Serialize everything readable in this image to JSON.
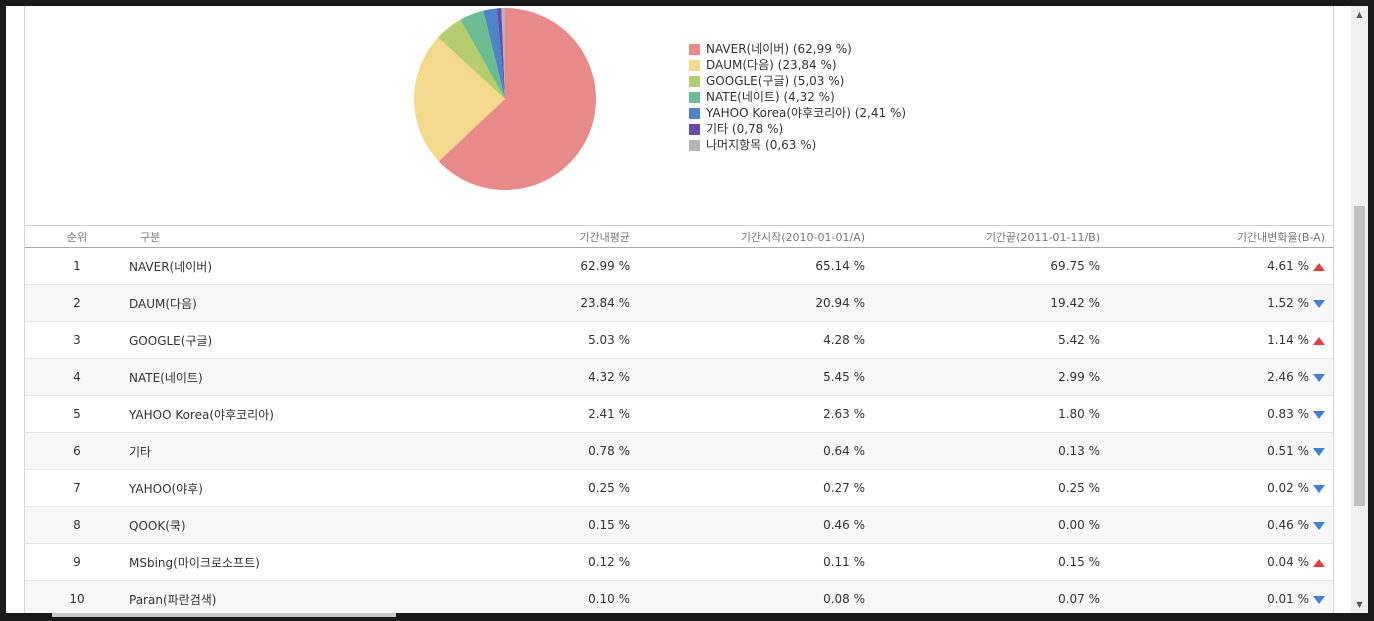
{
  "chart_data": {
    "type": "pie",
    "slices": [
      {
        "label": "NAVER(네이버)",
        "legend": "NAVER(네이버) (62,99 %)",
        "value": 62.99,
        "color": "#e8898a"
      },
      {
        "label": "DAUM(다음)",
        "legend": "DAUM(다음) (23,84 %)",
        "value": 23.84,
        "color": "#f2d98b"
      },
      {
        "label": "GOOGLE(구글)",
        "legend": "GOOGLE(구글) (5,03 %)",
        "value": 5.03,
        "color": "#b5cd6c"
      },
      {
        "label": "NATE(네이트)",
        "legend": "NATE(네이트) (4,32 %)",
        "value": 4.32,
        "color": "#6cbb93"
      },
      {
        "label": "YAHOO Korea(야후코리아)",
        "legend": "YAHOO Korea(야후코리아) (2,41 %)",
        "value": 2.41,
        "color": "#4f83c8"
      },
      {
        "label": "기타",
        "legend": "기타 (0,78 %)",
        "value": 0.78,
        "color": "#6c4aa8"
      },
      {
        "label": "나머지항목",
        "legend": "나머지항목 (0,63 %)",
        "value": 0.63,
        "color": "#b5b5b5"
      }
    ],
    "legend_position": "right"
  },
  "table": {
    "headers": {
      "rank": "순위",
      "name": "구분",
      "avg": "기간내평균",
      "start": "기간시작(2010-01-01/A)",
      "end": "기간끝(2011-01-11/B)",
      "change": "기간내변화율(B-A)"
    },
    "rows": [
      {
        "rank": "1",
        "name": "NAVER(네이버)",
        "avg": "62.99 %",
        "start": "65.14 %",
        "end": "69.75 %",
        "change": "4.61 %",
        "trend": "up"
      },
      {
        "rank": "2",
        "name": "DAUM(다음)",
        "avg": "23.84 %",
        "start": "20.94 %",
        "end": "19.42 %",
        "change": "1.52 %",
        "trend": "down"
      },
      {
        "rank": "3",
        "name": "GOOGLE(구글)",
        "avg": "5.03 %",
        "start": "4.28 %",
        "end": "5.42 %",
        "change": "1.14 %",
        "trend": "up"
      },
      {
        "rank": "4",
        "name": "NATE(네이트)",
        "avg": "4.32 %",
        "start": "5.45 %",
        "end": "2.99 %",
        "change": "2.46 %",
        "trend": "down"
      },
      {
        "rank": "5",
        "name": "YAHOO Korea(야후코리아)",
        "avg": "2.41 %",
        "start": "2.63 %",
        "end": "1.80 %",
        "change": "0.83 %",
        "trend": "down"
      },
      {
        "rank": "6",
        "name": "기타",
        "avg": "0.78 %",
        "start": "0.64 %",
        "end": "0.13 %",
        "change": "0.51 %",
        "trend": "down"
      },
      {
        "rank": "7",
        "name": "YAHOO(야후)",
        "avg": "0.25 %",
        "start": "0.27 %",
        "end": "0.25 %",
        "change": "0.02 %",
        "trend": "down"
      },
      {
        "rank": "8",
        "name": "QOOK(쿡)",
        "avg": "0.15 %",
        "start": "0.46 %",
        "end": "0.00 %",
        "change": "0.46 %",
        "trend": "down"
      },
      {
        "rank": "9",
        "name": "MSbing(마이크로소프트)",
        "avg": "0.12 %",
        "start": "0.11 %",
        "end": "0.15 %",
        "change": "0.04 %",
        "trend": "up"
      },
      {
        "rank": "10",
        "name": "Paran(파란검색)",
        "avg": "0.10 %",
        "start": "0.08 %",
        "end": "0.07 %",
        "change": "0.01 %",
        "trend": "down"
      }
    ]
  },
  "scrollbar": {
    "up_icon": "triangle-up-icon",
    "down_icon": "triangle-down-icon"
  }
}
